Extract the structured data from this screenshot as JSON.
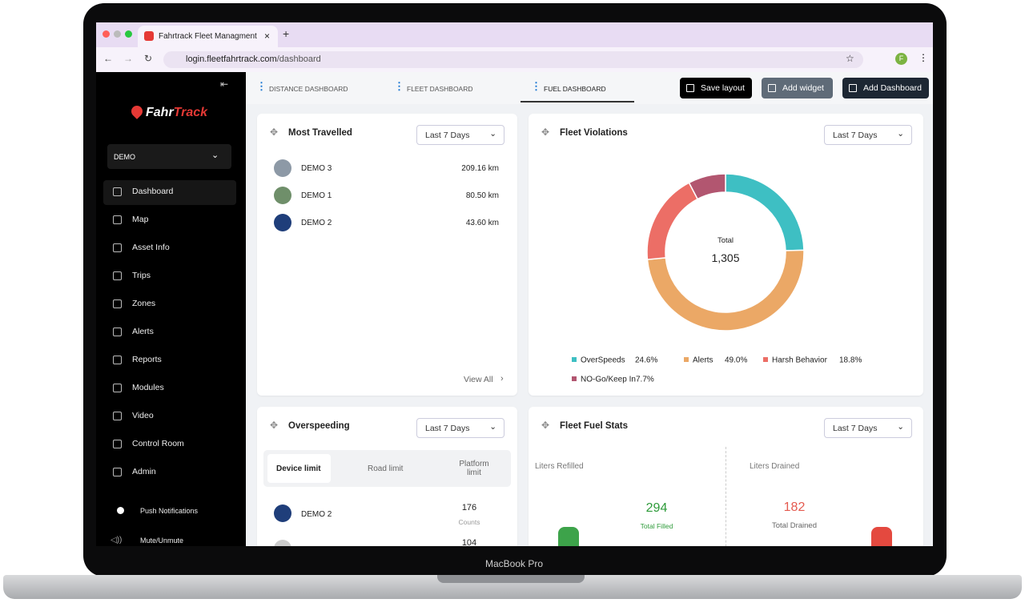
{
  "browser": {
    "tab_title": "Fahrtrack Fleet Managment",
    "url_host": "login.fleetfahrtrack.com",
    "url_path": "/dashboard",
    "profile_initial": "F"
  },
  "device_label": "MacBook Pro",
  "sidebar": {
    "brand_left": "Fahr",
    "brand_right": "Track",
    "account": "DEMO",
    "menu": [
      "Dashboard",
      "Map",
      "Asset Info",
      "Trips",
      "Zones",
      "Alerts",
      "Reports",
      "Modules",
      "Video",
      "Control Room",
      "Admin"
    ],
    "push_notifications": "Push Notifications",
    "mute": "Mute/Unmute"
  },
  "tabs": [
    "DISTANCE DASHBOARD",
    "FLEET DASHBOARD",
    "FUEL DASHBOARD"
  ],
  "actions": [
    "Save layout",
    "Add widget",
    "Add Dashboard"
  ],
  "most_travelled": {
    "title": "Most Travelled",
    "period": "Last 7 Days",
    "rows": [
      {
        "name": "DEMO 3",
        "distance": "209.16 km"
      },
      {
        "name": "DEMO 1",
        "distance": "80.50 km"
      },
      {
        "name": "DEMO 2",
        "distance": "43.60 km"
      }
    ],
    "view_all": "View All"
  },
  "chart_data": {
    "type": "pie",
    "title": "Fleet Violations",
    "period": "Last 7 Days",
    "center_label": "Total",
    "center_value": "1,305",
    "categories": [
      "OverSpeeds",
      "Alerts",
      "Harsh Behavior",
      "NO-Go/Keep In"
    ],
    "values": [
      24.6,
      49.0,
      18.8,
      7.7
    ],
    "value_labels": [
      "24.6%",
      "49.0%",
      "18.8%",
      "7.7%"
    ],
    "colors": [
      "#3ebfc3",
      "#eba866",
      "#ec6e66",
      "#b25670"
    ]
  },
  "overspeeding": {
    "title": "Overspeeding",
    "period": "Last 7 Days",
    "tabs": [
      "Device limit",
      "Road limit",
      "Platform limit"
    ],
    "rows": [
      {
        "name": "DEMO 2",
        "count": "176",
        "unit": "Counts"
      },
      {
        "count": "104"
      }
    ]
  },
  "fuel_stats": {
    "title": "Fleet Fuel Stats",
    "period": "Last 7 Days",
    "refilled": {
      "label": "Liters Refilled",
      "value": "294",
      "caption": "Total Filled"
    },
    "drained": {
      "label": "Liters Drained",
      "value": "182",
      "caption": "Total Drained"
    }
  }
}
